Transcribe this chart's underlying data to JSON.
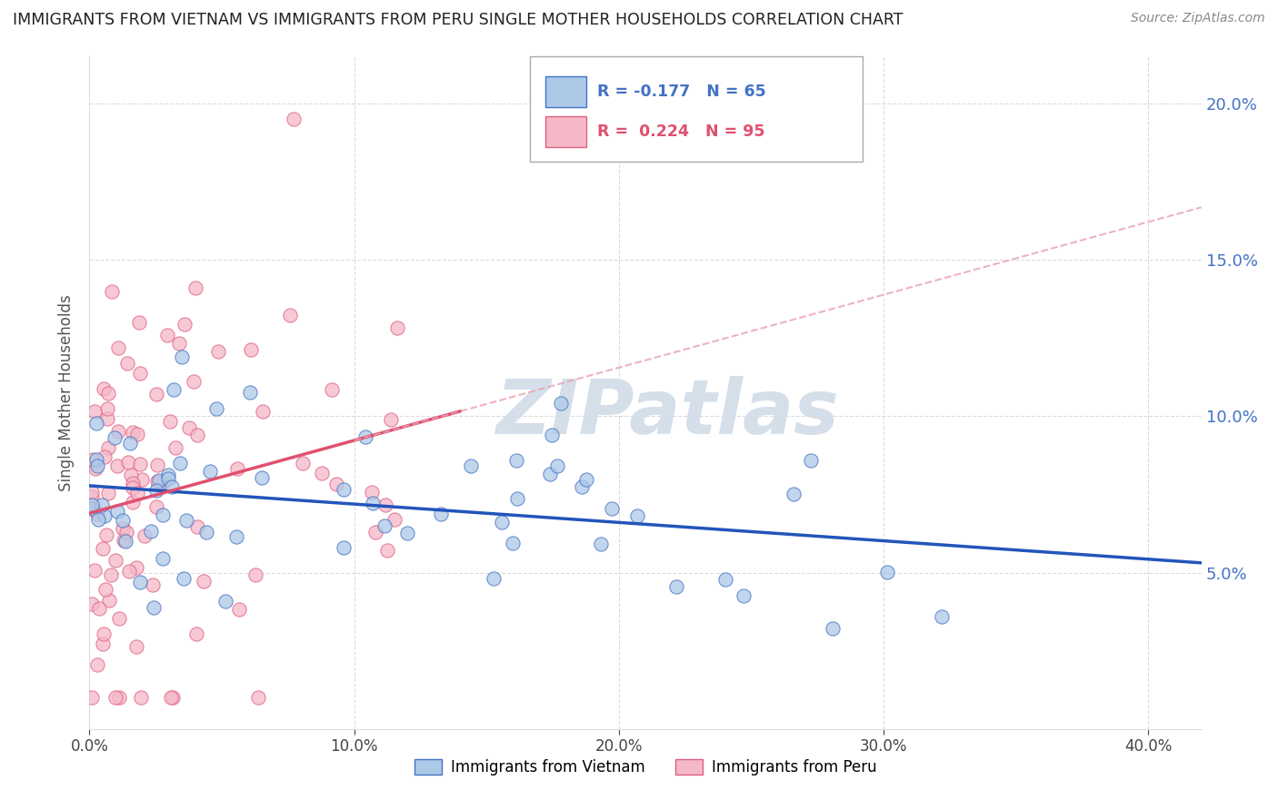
{
  "title": "IMMIGRANTS FROM VIETNAM VS IMMIGRANTS FROM PERU SINGLE MOTHER HOUSEHOLDS CORRELATION CHART",
  "source": "Source: ZipAtlas.com",
  "ylabel": "Single Mother Households",
  "xlim": [
    0.0,
    0.42
  ],
  "ylim": [
    0.0,
    0.215
  ],
  "yticks": [
    0.05,
    0.1,
    0.15,
    0.2
  ],
  "xticks": [
    0.0,
    0.1,
    0.2,
    0.3,
    0.4
  ],
  "vietnam_color": "#adc9e8",
  "vietnam_edge": "#4472c4",
  "peru_color": "#f5b8c8",
  "peru_edge": "#e06080",
  "vietnam_line_color": "#2255bb",
  "peru_line_color": "#e05070",
  "peru_dashed_color": "#e8a0b0",
  "background_color": "#ffffff",
  "grid_color": "#cccccc",
  "right_tick_color": "#4472c4",
  "watermark_color": "#d0dce8",
  "legend_border_color": "#aaaaaa",
  "legend_text_color_blue": "#4472c4",
  "legend_text_color_pink": "#e05070"
}
